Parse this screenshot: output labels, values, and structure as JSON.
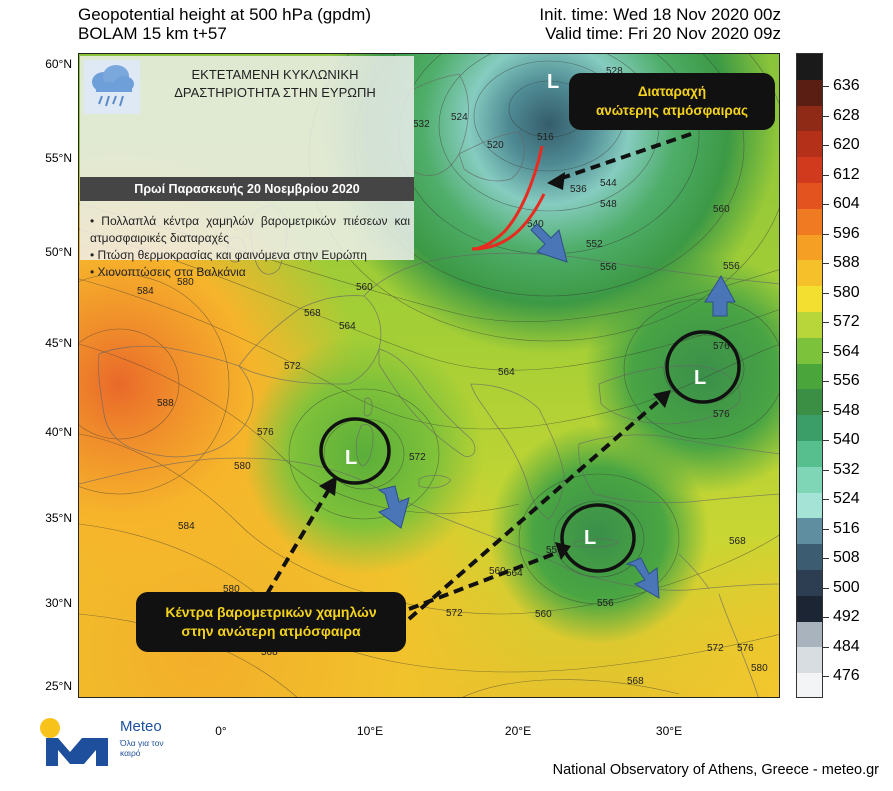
{
  "header": {
    "title_line1": "Geopotential height at 500 hPa (gpdm)",
    "title_line2": "BOLAM 15 km t+57",
    "init_time": "Init. time: Wed 18 Nov 2020 00z",
    "valid_time": "Valid time: Fri 20 Nov 2020 09z"
  },
  "axes": {
    "lat_labels": [
      "60°N",
      "55°N",
      "50°N",
      "45°N",
      "40°N",
      "35°N",
      "30°N",
      "25°N"
    ],
    "lon_labels": [
      "0°",
      "10°E",
      "20°E",
      "30°E"
    ]
  },
  "info_box": {
    "title_line1": "ΕΚΤΕΤΑΜΕΝΗ ΚΥΚΛΩΝΙΚΗ",
    "title_line2": "ΔΡΑΣΤΗΡΙΟΤΗΤΑ ΣΤΗΝ ΕΥΡΩΠΗ",
    "date_band": "Πρωί Παρασκευής 20 Νοεμβρίου 2020",
    "bullets": [
      "Πολλαπλά κέντρα χαμηλών βαρομετρικών πιέσεων και ατμοσφαιρικές διαταραχές",
      "Πτώση θερμοκρασίας και φαινόμενα στην Ευρώπη",
      "Χιονοπτώσεις στα Βαλκάνια"
    ],
    "icon": "rain-cloud-icon"
  },
  "callouts": {
    "upper_disturbance_line1": "Διαταραχή",
    "upper_disturbance_line2": "ανώτερης ατμόσφαιρας",
    "lows_line1": "Κέντρα βαρομετρικών χαμηλών",
    "lows_line2": "στην ανώτερη ατμόσφαιρα"
  },
  "low_centers": [
    {
      "label": "L",
      "name": "north"
    },
    {
      "label": "L",
      "name": "sardinia"
    },
    {
      "label": "L",
      "name": "crete"
    },
    {
      "label": "L",
      "name": "black-sea"
    }
  ],
  "contour_labels": [
    "528",
    "524",
    "520",
    "532",
    "516",
    "536",
    "544",
    "548",
    "540",
    "552",
    "556",
    "560",
    "584",
    "580",
    "568",
    "564",
    "572",
    "588",
    "576",
    "580",
    "560",
    "556",
    "576",
    "564",
    "572",
    "576",
    "556",
    "560",
    "584",
    "580",
    "564",
    "572",
    "576",
    "568",
    "560",
    "556",
    "568",
    "572",
    "576",
    "580",
    "568"
  ],
  "colorbar": {
    "labels": [
      "636",
      "628",
      "620",
      "612",
      "604",
      "596",
      "588",
      "580",
      "572",
      "564",
      "556",
      "548",
      "540",
      "532",
      "524",
      "516",
      "508",
      "500",
      "492",
      "484",
      "476"
    ],
    "colors": [
      "#1a1a1a",
      "#5a1f12",
      "#8f2a16",
      "#b43019",
      "#d13a1c",
      "#e2531f",
      "#ef7a22",
      "#f5a025",
      "#f6c02a",
      "#f2df2f",
      "#b8d63a",
      "#7cc23b",
      "#4aa63b",
      "#3a8f45",
      "#3b9e68",
      "#56bf8d",
      "#7fd6b7",
      "#a5e3d7",
      "#5e8ea0",
      "#3c5c72",
      "#2d3e52",
      "#1b2533",
      "#a9b3bd",
      "#d8dde2",
      "#f2f4f6"
    ]
  },
  "logo": {
    "word": "Meteo",
    "slogan": "Όλα για τον καιρό"
  },
  "footer": "National Observatory of Athens, Greece - meteo.gr"
}
